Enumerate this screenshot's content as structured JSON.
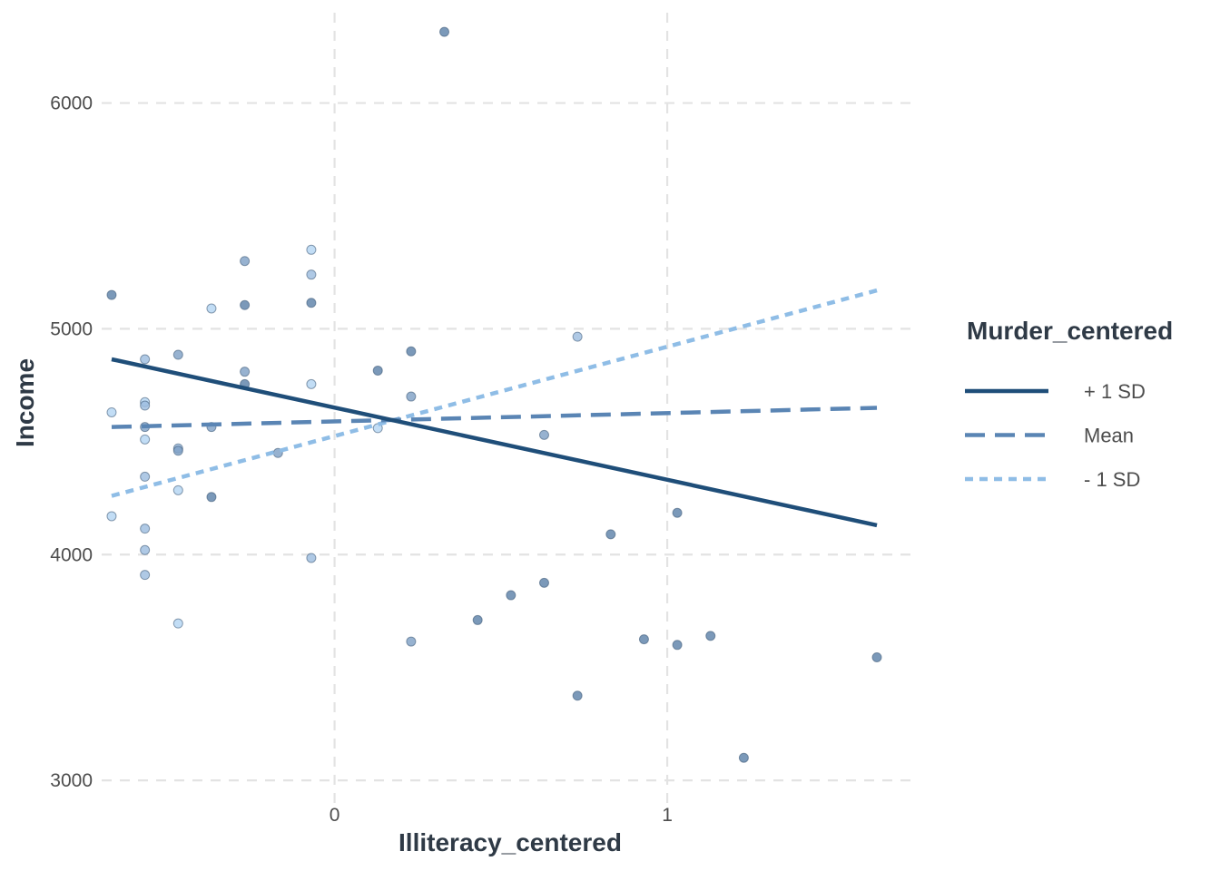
{
  "chart_data": {
    "type": "scatter",
    "xlabel": "Illiteracy_centered",
    "ylabel": "Income",
    "xlim": [
      -0.7,
      1.75
    ],
    "ylim": [
      2900,
      6400
    ],
    "x_ticks": [
      0,
      1
    ],
    "x_tick_labels": [
      "0",
      "1"
    ],
    "y_ticks": [
      3000,
      4000,
      5000,
      6000
    ],
    "y_tick_labels": [
      "3000",
      "4000",
      "5000",
      "6000"
    ],
    "grid": true,
    "grid_style": "dashed",
    "legend": {
      "title": "Murder_centered",
      "position": "right",
      "entries": [
        {
          "label": "+ 1 SD",
          "color": "#1f4e79",
          "dash": "solid"
        },
        {
          "label": "Mean",
          "color": "#5a85b4",
          "dash": "dashed"
        },
        {
          "label": "- 1 SD",
          "color": "#8fbde6",
          "dash": "dotted"
        }
      ]
    },
    "lines": [
      {
        "name": "+ 1 SD",
        "color": "#1f4e79",
        "dash": "solid",
        "x": [
          -0.67,
          1.63
        ],
        "y": [
          4865,
          4130
        ]
      },
      {
        "name": "Mean",
        "color": "#5a85b4",
        "dash": "dashed",
        "x": [
          -0.67,
          1.63
        ],
        "y": [
          4565,
          4650
        ]
      },
      {
        "name": "- 1 SD",
        "color": "#8fbde6",
        "dash": "dotted",
        "x": [
          -0.67,
          1.63
        ],
        "y": [
          4260,
          5170
        ]
      }
    ],
    "points": [
      {
        "x": 0.33,
        "y": 6315,
        "color": "#5a7fa8"
      },
      {
        "x": -0.67,
        "y": 5150,
        "color": "#5a7fa8"
      },
      {
        "x": -0.27,
        "y": 5300,
        "color": "#7d9fc4"
      },
      {
        "x": -0.27,
        "y": 5105,
        "color": "#5a7fa8"
      },
      {
        "x": -0.27,
        "y": 4810,
        "color": "#7d9fc4"
      },
      {
        "x": -0.27,
        "y": 4755,
        "color": "#5a7fa8"
      },
      {
        "x": -0.07,
        "y": 5115,
        "color": "#5a7fa8"
      },
      {
        "x": -0.07,
        "y": 5240,
        "color": "#9bbbdf"
      },
      {
        "x": -0.07,
        "y": 5350,
        "color": "#b3d5f2"
      },
      {
        "x": -0.07,
        "y": 4755,
        "color": "#b3d5f2"
      },
      {
        "x": -0.07,
        "y": 3985,
        "color": "#9bbbdf"
      },
      {
        "x": -0.37,
        "y": 5090,
        "color": "#b3d5f2"
      },
      {
        "x": -0.37,
        "y": 4565,
        "color": "#7d9fc4"
      },
      {
        "x": -0.37,
        "y": 4255,
        "color": "#5a7fa8"
      },
      {
        "x": -0.47,
        "y": 4885,
        "color": "#7d9fc4"
      },
      {
        "x": -0.47,
        "y": 4470,
        "color": "#9bbbdf"
      },
      {
        "x": -0.47,
        "y": 4460,
        "color": "#7d9fc4"
      },
      {
        "x": -0.47,
        "y": 4285,
        "color": "#b3d5f2"
      },
      {
        "x": -0.47,
        "y": 3695,
        "color": "#b3d5f2"
      },
      {
        "x": -0.57,
        "y": 4865,
        "color": "#9bbbdf"
      },
      {
        "x": -0.57,
        "y": 4675,
        "color": "#b3d5f2"
      },
      {
        "x": -0.57,
        "y": 4660,
        "color": "#9bbbdf"
      },
      {
        "x": -0.57,
        "y": 4565,
        "color": "#7d9fc4"
      },
      {
        "x": -0.57,
        "y": 4510,
        "color": "#b3d5f2"
      },
      {
        "x": -0.57,
        "y": 4345,
        "color": "#9bbbdf"
      },
      {
        "x": -0.57,
        "y": 4115,
        "color": "#9bbbdf"
      },
      {
        "x": -0.57,
        "y": 4020,
        "color": "#9bbbdf"
      },
      {
        "x": -0.57,
        "y": 3910,
        "color": "#9bbbdf"
      },
      {
        "x": -0.67,
        "y": 4630,
        "color": "#b3d5f2"
      },
      {
        "x": -0.67,
        "y": 4170,
        "color": "#b3d5f2"
      },
      {
        "x": -0.17,
        "y": 4450,
        "color": "#7d9fc4"
      },
      {
        "x": 0.13,
        "y": 4815,
        "color": "#5a7fa8"
      },
      {
        "x": 0.13,
        "y": 4560,
        "color": "#b3d5f2"
      },
      {
        "x": 0.23,
        "y": 4900,
        "color": "#5a7fa8"
      },
      {
        "x": 0.23,
        "y": 4700,
        "color": "#7d9fc4"
      },
      {
        "x": 0.23,
        "y": 3615,
        "color": "#7d9fc4"
      },
      {
        "x": 0.43,
        "y": 3710,
        "color": "#5a7fa8"
      },
      {
        "x": 0.53,
        "y": 3820,
        "color": "#5a7fa8"
      },
      {
        "x": 0.63,
        "y": 4530,
        "color": "#7d9fc4"
      },
      {
        "x": 0.63,
        "y": 3875,
        "color": "#5a7fa8"
      },
      {
        "x": 0.73,
        "y": 4965,
        "color": "#9bbbdf"
      },
      {
        "x": 0.73,
        "y": 3375,
        "color": "#5a7fa8"
      },
      {
        "x": 0.83,
        "y": 4090,
        "color": "#5a7fa8"
      },
      {
        "x": 0.93,
        "y": 3625,
        "color": "#5a7fa8"
      },
      {
        "x": 1.03,
        "y": 4185,
        "color": "#5a7fa8"
      },
      {
        "x": 1.03,
        "y": 3600,
        "color": "#5a7fa8"
      },
      {
        "x": 1.13,
        "y": 3640,
        "color": "#5a7fa8"
      },
      {
        "x": 1.23,
        "y": 3100,
        "color": "#5a7fa8"
      },
      {
        "x": 1.63,
        "y": 3545,
        "color": "#5a7fa8"
      }
    ]
  }
}
